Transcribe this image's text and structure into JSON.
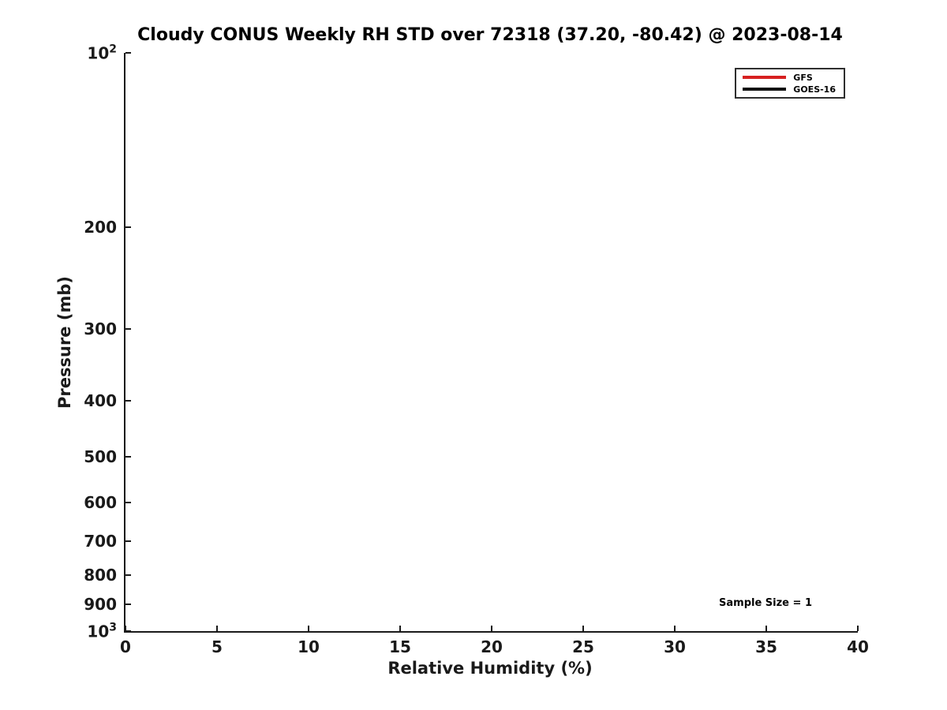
{
  "chart_data": {
    "type": "line",
    "title": "Cloudy CONUS Weekly RH STD over 72318 (37.20, -80.42) @ 2023-08-14",
    "xlabel": "Relative Humidity (%)",
    "ylabel": "Pressure (mb)",
    "xlim": [
      0,
      40
    ],
    "x_ticks": [
      0,
      5,
      10,
      15,
      20,
      25,
      30,
      35,
      40
    ],
    "y_scale": "log",
    "y_inverted": true,
    "ylim": [
      100,
      1000
    ],
    "y_ticks": [
      {
        "value": 100,
        "label": "10^2"
      },
      {
        "value": 200,
        "label": "200"
      },
      {
        "value": 300,
        "label": "300"
      },
      {
        "value": 400,
        "label": "400"
      },
      {
        "value": 500,
        "label": "500"
      },
      {
        "value": 600,
        "label": "600"
      },
      {
        "value": 700,
        "label": "700"
      },
      {
        "value": 800,
        "label": "800"
      },
      {
        "value": 900,
        "label": "900"
      },
      {
        "value": 1000,
        "label": "10^3"
      }
    ],
    "grid": false,
    "legend": {
      "position": "top-right",
      "entries": [
        {
          "name": "GFS",
          "color": "#d62020"
        },
        {
          "name": "GOES-16",
          "color": "#111111"
        }
      ]
    },
    "series": [
      {
        "name": "GFS",
        "color": "#d62020",
        "x": [],
        "y": []
      },
      {
        "name": "GOES-16",
        "color": "#111111",
        "x": [],
        "y": []
      }
    ],
    "annotation": {
      "text": "Sample Size = 1"
    }
  },
  "colors": {
    "axis": "#1a1a1a",
    "text": "#000000",
    "background": "#ffffff",
    "gfs_red": "#d62020",
    "goes_black": "#111111"
  }
}
